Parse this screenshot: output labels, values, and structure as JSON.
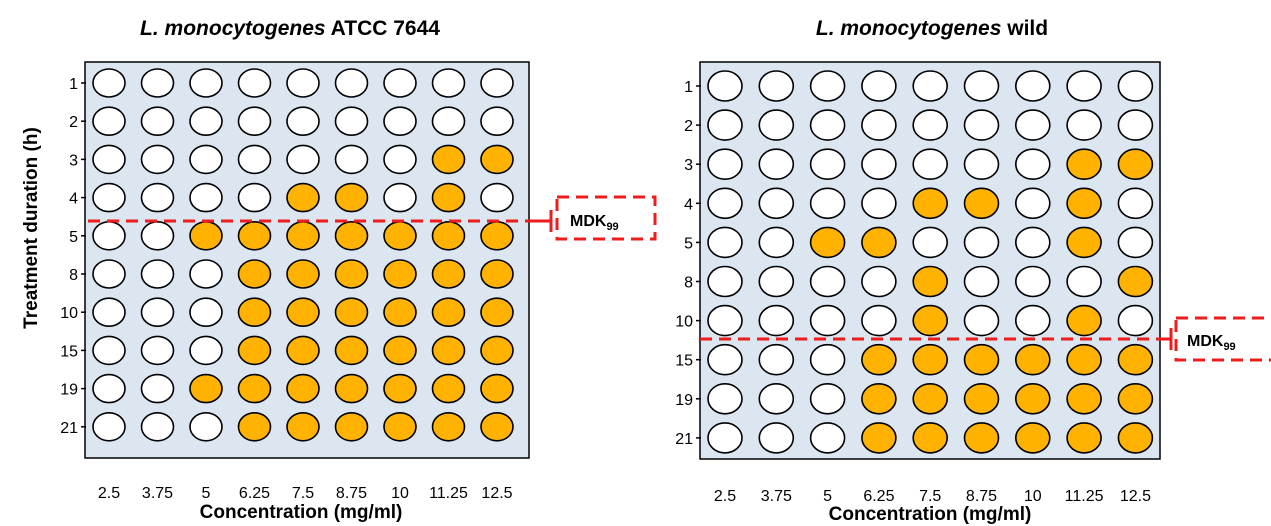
{
  "ylabel": "Treatment duration (h)",
  "mdk_label": "MDK",
  "mdk_subscript": "99",
  "colors": {
    "panel_bg": "#dce6f1",
    "positive": "#ffb300",
    "negative": "#ffffff",
    "mdk_line": "#ee1c1c"
  },
  "legend_semantics": "filled = #ffb300 cell, empty = white cell",
  "chart_data": [
    {
      "type": "heatmap",
      "title_italic": "L. monocytogenes",
      "title_rest": " ATCC 7644",
      "xlabel": "Concentration (mg/ml)",
      "ylabel": "Treatment duration (h)",
      "x_categories": [
        "2.5",
        "3.75",
        "5",
        "6.25",
        "7.5",
        "8.75",
        "10",
        "11.25",
        "12.5"
      ],
      "y_categories": [
        "1",
        "2",
        "3",
        "4",
        "5",
        "8",
        "10",
        "15",
        "19",
        "21"
      ],
      "values": [
        [
          0,
          0,
          0,
          0,
          0,
          0,
          0,
          0,
          0
        ],
        [
          0,
          0,
          0,
          0,
          0,
          0,
          0,
          0,
          0
        ],
        [
          0,
          0,
          0,
          0,
          0,
          0,
          0,
          1,
          1
        ],
        [
          0,
          0,
          0,
          0,
          1,
          1,
          0,
          1,
          0
        ],
        [
          0,
          0,
          1,
          1,
          1,
          1,
          1,
          1,
          1
        ],
        [
          0,
          0,
          0,
          1,
          1,
          1,
          1,
          1,
          1
        ],
        [
          0,
          0,
          0,
          1,
          1,
          1,
          1,
          1,
          1
        ],
        [
          0,
          0,
          0,
          1,
          1,
          1,
          1,
          1,
          1
        ],
        [
          0,
          0,
          1,
          1,
          1,
          1,
          1,
          1,
          1
        ],
        [
          0,
          0,
          0,
          1,
          1,
          1,
          1,
          1,
          1
        ]
      ],
      "mdk_between": [
        "4",
        "5"
      ]
    },
    {
      "type": "heatmap",
      "title_italic": "L. monocytogenes",
      "title_rest": " wild",
      "xlabel": "Concentration (mg/ml)",
      "ylabel": "",
      "x_categories": [
        "2.5",
        "3.75",
        "5",
        "6.25",
        "7.5",
        "8.75",
        "10",
        "11.25",
        "12.5"
      ],
      "y_categories": [
        "1",
        "2",
        "3",
        "4",
        "5",
        "8",
        "10",
        "15",
        "19",
        "21"
      ],
      "values": [
        [
          0,
          0,
          0,
          0,
          0,
          0,
          0,
          0,
          0
        ],
        [
          0,
          0,
          0,
          0,
          0,
          0,
          0,
          0,
          0
        ],
        [
          0,
          0,
          0,
          0,
          0,
          0,
          0,
          1,
          1
        ],
        [
          0,
          0,
          0,
          0,
          1,
          1,
          0,
          1,
          0
        ],
        [
          0,
          0,
          1,
          1,
          0,
          0,
          0,
          1,
          0
        ],
        [
          0,
          0,
          0,
          0,
          1,
          0,
          0,
          0,
          1
        ],
        [
          0,
          0,
          0,
          0,
          1,
          0,
          0,
          1,
          0
        ],
        [
          0,
          0,
          0,
          1,
          1,
          1,
          1,
          1,
          1
        ],
        [
          0,
          0,
          0,
          1,
          1,
          1,
          1,
          1,
          1
        ],
        [
          0,
          0,
          0,
          1,
          1,
          1,
          1,
          1,
          1
        ]
      ],
      "mdk_between": [
        "10",
        "15"
      ]
    }
  ]
}
